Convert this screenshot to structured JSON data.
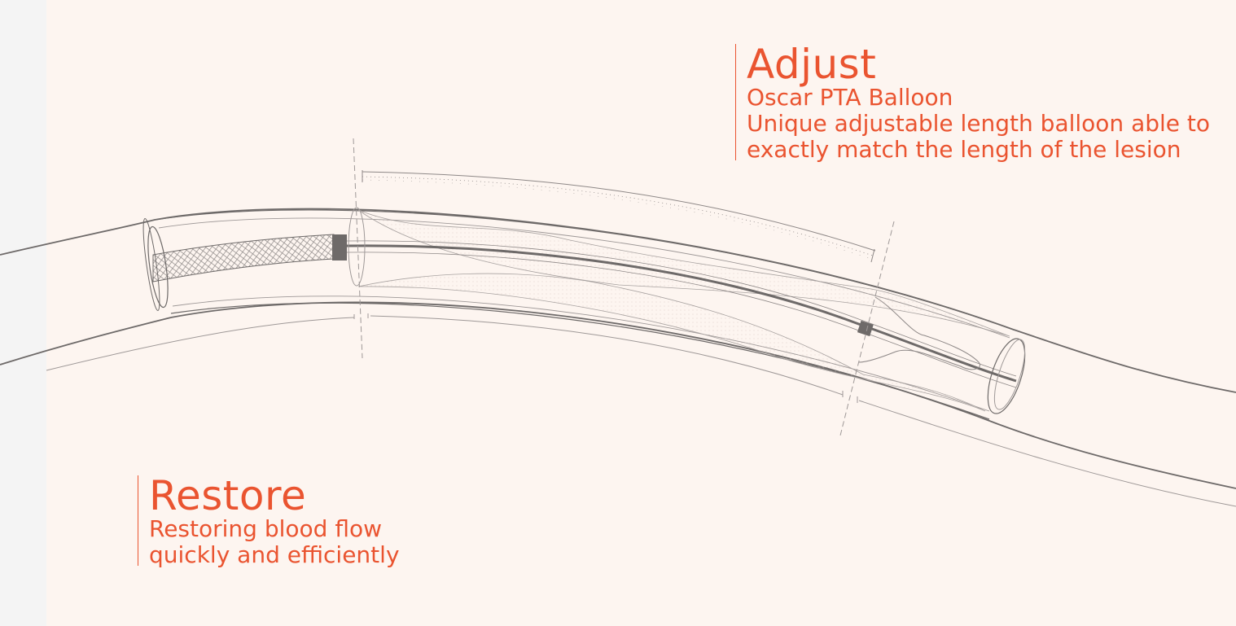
{
  "colors": {
    "accent": "#ea5430",
    "line": "#6e6a69",
    "background": "#fdf5f0",
    "margin": "#f4f4f4"
  },
  "callouts": {
    "adjust": {
      "headline": "Adjust",
      "product": "Oscar PTA Balloon",
      "line1": "Unique adjustable length balloon able to",
      "line2": "exactly match the length of the lesion"
    },
    "restore": {
      "headline": "Restore",
      "line1": "Restoring blood flow",
      "line2": "quickly and efficiently"
    }
  },
  "illustration": {
    "subject": "catheter-balloon-in-vessel"
  }
}
